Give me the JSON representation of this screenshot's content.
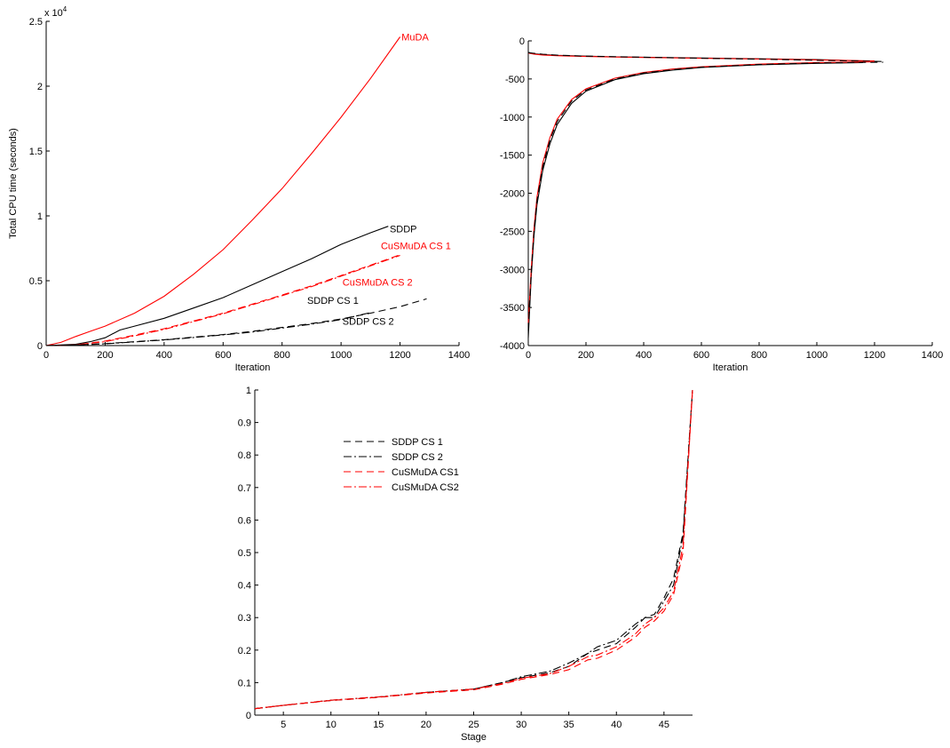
{
  "colors": {
    "black": "#000000",
    "red": "#ff0000"
  },
  "chart_data": [
    {
      "type": "line",
      "xlabel": "Iteration",
      "ylabel": "Total CPU time (seconds)",
      "exponent_label": {
        "base": "x 10",
        "power": "4"
      },
      "xlim": [
        0,
        1400
      ],
      "ylim": [
        0,
        25000
      ],
      "xticks": [
        0,
        200,
        400,
        600,
        800,
        1000,
        1200,
        1400
      ],
      "yticks": [
        0,
        5000,
        10000,
        15000,
        20000,
        25000
      ],
      "ytick_labels": [
        "0",
        "0.5",
        "1",
        "1.5",
        "2",
        "2.5"
      ],
      "grid": false,
      "series": [
        {
          "name": "MuDA",
          "color": "#ff0000",
          "dash": "solid",
          "x": [
            0,
            50,
            100,
            150,
            200,
            300,
            400,
            500,
            600,
            700,
            800,
            900,
            1000,
            1100,
            1200
          ],
          "y": [
            0,
            250,
            700,
            1100,
            1500,
            2500,
            3800,
            5500,
            7400,
            9700,
            12100,
            14800,
            17600,
            20600,
            23800
          ]
        },
        {
          "name": "SDDP",
          "color": "#000000",
          "dash": "solid",
          "x": [
            0,
            100,
            150,
            200,
            250,
            300,
            400,
            500,
            600,
            700,
            800,
            900,
            1000,
            1100,
            1160
          ],
          "y": [
            0,
            100,
            300,
            600,
            1200,
            1500,
            2100,
            2900,
            3700,
            4700,
            5700,
            6700,
            7800,
            8700,
            9200
          ]
        },
        {
          "name": "CuSMuDA CS 1",
          "color": "#ff0000",
          "dash": "8 5",
          "x": [
            0,
            100,
            200,
            300,
            400,
            500,
            600,
            700,
            800,
            900,
            1000,
            1100,
            1200
          ],
          "y": [
            0,
            50,
            350,
            800,
            1300,
            1900,
            2500,
            3200,
            3900,
            4600,
            5400,
            6200,
            7000
          ]
        },
        {
          "name": "CuSMuDA CS 2",
          "color": "#ff0000",
          "dash": "9 3 2 3",
          "x": [
            0,
            100,
            200,
            300,
            400,
            500,
            600,
            700,
            800,
            900,
            1000,
            1100,
            1200
          ],
          "y": [
            0,
            50,
            300,
            750,
            1250,
            1850,
            2450,
            3150,
            3850,
            4550,
            5350,
            6150,
            6950
          ]
        },
        {
          "name": "SDDP CS 1",
          "color": "#000000",
          "dash": "8 5",
          "x": [
            0,
            100,
            200,
            300,
            400,
            500,
            600,
            700,
            800,
            900,
            1000,
            1100,
            1200,
            1290
          ],
          "y": [
            0,
            40,
            150,
            300,
            450,
            650,
            850,
            1100,
            1400,
            1700,
            2050,
            2500,
            3000,
            3600
          ]
        },
        {
          "name": "SDDP CS 2",
          "color": "#000000",
          "dash": "9 3 2 3",
          "x": [
            0,
            100,
            200,
            300,
            400,
            500,
            600,
            700,
            800,
            900,
            1000,
            1100
          ],
          "y": [
            0,
            40,
            140,
            280,
            430,
            620,
            820,
            1050,
            1350,
            1650,
            2000,
            2550
          ]
        }
      ],
      "annotations": [
        {
          "text": "MuDA",
          "x": 1205,
          "y": 23800,
          "color": "#ff0000"
        },
        {
          "text": "SDDP",
          "x": 1165,
          "y": 9000,
          "color": "#000000"
        },
        {
          "text": "CuSMuDA CS 1",
          "x": 1135,
          "y": 7700,
          "color": "#ff0000"
        },
        {
          "text": "CuSMuDA CS 2",
          "x": 1005,
          "y": 4900,
          "color": "#ff0000"
        },
        {
          "text": "SDDP CS 1",
          "x": 885,
          "y": 3500,
          "color": "#000000"
        },
        {
          "text": "SDDP CS 2",
          "x": 1005,
          "y": 1900,
          "color": "#000000"
        }
      ]
    },
    {
      "type": "line",
      "xlabel": "Iteration",
      "ylabel": "",
      "xlim": [
        0,
        1400
      ],
      "ylim": [
        -4000,
        0
      ],
      "xticks": [
        0,
        200,
        400,
        600,
        800,
        1000,
        1200,
        1400
      ],
      "yticks": [
        -4000,
        -3500,
        -3000,
        -2500,
        -2000,
        -1500,
        -1000,
        -500,
        0
      ],
      "grid": false,
      "series": [
        {
          "color": "#000000",
          "dash": "solid",
          "x": [
            0,
            20,
            50,
            100,
            200,
            300,
            400,
            600,
            800,
            1000,
            1160
          ],
          "y": [
            -150,
            -170,
            -180,
            -190,
            -200,
            -210,
            -215,
            -225,
            -235,
            -245,
            -265
          ]
        },
        {
          "color": "#ff0000",
          "dash": "solid",
          "x": [
            0,
            20,
            50,
            100,
            200,
            300,
            400,
            600,
            800,
            1000,
            1200
          ],
          "y": [
            -160,
            -175,
            -185,
            -195,
            -205,
            -212,
            -218,
            -228,
            -238,
            -250,
            -262
          ]
        },
        {
          "color": "#000000",
          "dash": "8 5",
          "x": [
            0,
            50,
            100,
            200,
            400,
            600,
            800,
            1000,
            1230
          ],
          "y": [
            -155,
            -175,
            -188,
            -200,
            -215,
            -228,
            -240,
            -255,
            -270
          ]
        },
        {
          "color": "#000000",
          "dash": "solid",
          "x": [
            0,
            10,
            20,
            30,
            50,
            75,
            100,
            150,
            200,
            300,
            400,
            500,
            600,
            800,
            1000,
            1160
          ],
          "y": [
            -3900,
            -3100,
            -2550,
            -2150,
            -1700,
            -1350,
            -1100,
            -820,
            -660,
            -510,
            -430,
            -385,
            -350,
            -315,
            -295,
            -285
          ]
        },
        {
          "color": "#ff0000",
          "dash": "solid",
          "x": [
            0,
            10,
            20,
            30,
            50,
            75,
            100,
            150,
            200,
            300,
            400,
            500,
            600,
            800,
            1000,
            1200
          ],
          "y": [
            -3700,
            -3000,
            -2450,
            -2050,
            -1600,
            -1270,
            -1030,
            -770,
            -630,
            -490,
            -415,
            -370,
            -340,
            -305,
            -285,
            -275
          ]
        },
        {
          "color": "#000000",
          "dash": "8 5",
          "x": [
            0,
            10,
            20,
            30,
            50,
            75,
            100,
            150,
            200,
            300,
            400,
            500,
            600,
            800,
            1000,
            1230
          ],
          "y": [
            -3800,
            -3050,
            -2500,
            -2100,
            -1650,
            -1300,
            -1060,
            -790,
            -645,
            -500,
            -422,
            -378,
            -345,
            -310,
            -290,
            -280
          ]
        }
      ]
    },
    {
      "type": "line",
      "xlabel": "Stage",
      "ylabel": "",
      "xlim": [
        2,
        48
      ],
      "ylim": [
        0,
        1
      ],
      "xticks": [
        5,
        10,
        15,
        20,
        25,
        30,
        35,
        40,
        45
      ],
      "yticks": [
        0,
        0.1,
        0.2,
        0.3,
        0.4,
        0.5,
        0.6,
        0.7,
        0.8,
        0.9,
        1
      ],
      "ytick_labels": [
        "0",
        "0.1",
        "0.2",
        "0.3",
        "0.4",
        "0.5",
        "0.6",
        "0.7",
        "0.8",
        "0.9",
        "1"
      ],
      "grid": false,
      "legend": "top-left",
      "series": [
        {
          "name": "SDDP CS 1",
          "color": "#000000",
          "dash": "8 5",
          "x": [
            2,
            5,
            10,
            15,
            20,
            25,
            28,
            30,
            33,
            35,
            37,
            38,
            40,
            42,
            43,
            44,
            45,
            46,
            47,
            48
          ],
          "y": [
            0.02,
            0.03,
            0.045,
            0.055,
            0.07,
            0.08,
            0.1,
            0.115,
            0.13,
            0.15,
            0.19,
            0.2,
            0.22,
            0.27,
            0.3,
            0.31,
            0.36,
            0.42,
            0.56,
            1.0
          ]
        },
        {
          "name": "SDDP CS 2",
          "color": "#000000",
          "dash": "9 3 2 3",
          "x": [
            2,
            5,
            10,
            15,
            20,
            25,
            28,
            30,
            33,
            35,
            37,
            38,
            40,
            42,
            43,
            44,
            45,
            46,
            47,
            48
          ],
          "y": [
            0.02,
            0.03,
            0.046,
            0.056,
            0.07,
            0.08,
            0.1,
            0.118,
            0.135,
            0.16,
            0.19,
            0.21,
            0.23,
            0.28,
            0.3,
            0.3,
            0.35,
            0.4,
            0.55,
            1.0
          ]
        },
        {
          "name": "CuSMuDA CS1",
          "color": "#ff0000",
          "dash": "8 5",
          "x": [
            2,
            5,
            10,
            15,
            20,
            25,
            28,
            30,
            33,
            35,
            37,
            38,
            40,
            42,
            43,
            44,
            45,
            46,
            47,
            48
          ],
          "y": [
            0.02,
            0.03,
            0.045,
            0.055,
            0.068,
            0.078,
            0.095,
            0.11,
            0.125,
            0.14,
            0.17,
            0.175,
            0.2,
            0.24,
            0.27,
            0.29,
            0.32,
            0.37,
            0.5,
            1.0
          ]
        },
        {
          "name": "CuSMuDA CS2",
          "color": "#ff0000",
          "dash": "9 3 2 3",
          "x": [
            2,
            5,
            10,
            15,
            20,
            25,
            28,
            30,
            33,
            35,
            37,
            38,
            40,
            42,
            43,
            44,
            45,
            46,
            47,
            48
          ],
          "y": [
            0.02,
            0.03,
            0.046,
            0.056,
            0.07,
            0.08,
            0.097,
            0.113,
            0.128,
            0.15,
            0.18,
            0.185,
            0.21,
            0.25,
            0.28,
            0.3,
            0.33,
            0.38,
            0.52,
            1.0
          ]
        }
      ]
    }
  ]
}
